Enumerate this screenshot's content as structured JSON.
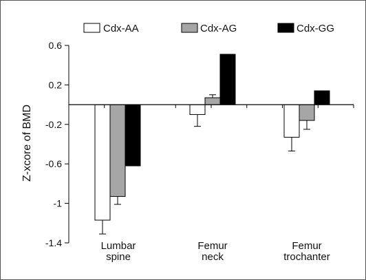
{
  "chart_data": {
    "type": "bar",
    "title": "",
    "xlabel": "",
    "ylabel": "Z-xcore of BMD",
    "ylim": [
      -1.4,
      0.6
    ],
    "yticks": [
      0.6,
      0.2,
      -0.2,
      -0.6,
      -1,
      -1.4
    ],
    "ytick_labels": [
      "0.6",
      "0.2",
      "-0.2",
      "-0.6",
      "-1",
      "-1.4"
    ],
    "categories": [
      [
        "Lumbar",
        "spine"
      ],
      [
        "Femur",
        "neck"
      ],
      [
        "Femur",
        "trochanter"
      ]
    ],
    "grid": false,
    "legend_position": "top",
    "series": [
      {
        "name": "Cdx-AA",
        "color": "#ffffff",
        "values": [
          -1.17,
          -0.1,
          -0.33
        ],
        "error": [
          0.14,
          0.12,
          0.14
        ]
      },
      {
        "name": "Cdx-AG",
        "color": "#a6a6a6",
        "values": [
          -0.93,
          0.07,
          -0.16
        ],
        "error": [
          0.08,
          0.03,
          0.09
        ]
      },
      {
        "name": "Cdx-GG",
        "color": "#000000",
        "values": [
          -0.62,
          0.51,
          0.14
        ],
        "error": [
          0,
          0,
          0
        ]
      }
    ]
  }
}
